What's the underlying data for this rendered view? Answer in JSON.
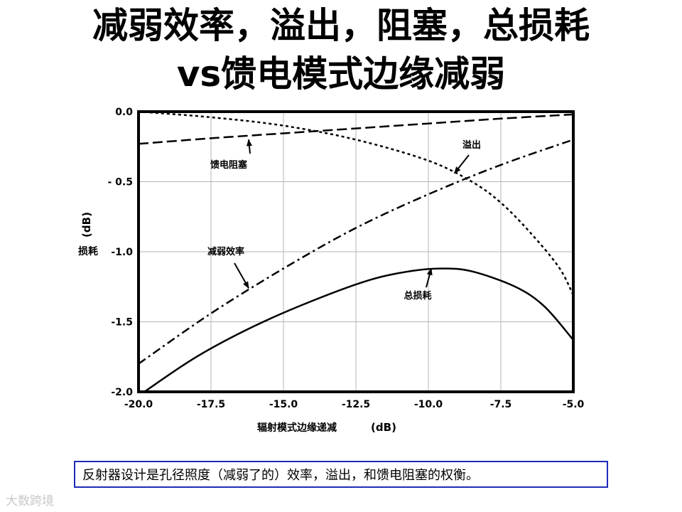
{
  "title_line1": "减弱效率，溢出，阻塞，总损耗",
  "title_line2": "vs馈电模式边缘减弱",
  "caption": "反射器设计是孔径照度（减弱了的）效率，溢出，和馈电阻塞的权衡。",
  "watermark": "大数跨境",
  "chart_data": {
    "type": "line",
    "xlabel": "辐射模式边缘递减",
    "xunit": "(dB)",
    "ylabel": "损耗",
    "yunit": "(dB)",
    "xlim": [
      -20.0,
      -5.0
    ],
    "ylim": [
      -2.0,
      0.0
    ],
    "x_ticks": [
      -20.0,
      -17.5,
      -15.0,
      -12.5,
      -10.0,
      -7.5,
      -5.0
    ],
    "x_tick_labels": [
      "-20.0",
      "-17.5",
      "-15.0",
      "-12.5",
      "-10.0",
      "-7.5",
      "-5.0"
    ],
    "y_ticks": [
      0.0,
      -0.5,
      -1.0,
      -1.5,
      -2.0
    ],
    "y_tick_labels": [
      "0.0",
      "- 0.5",
      "-1.0",
      "-1.5",
      "-2.0"
    ],
    "grid": true,
    "series": [
      {
        "name": "馈电阻塞",
        "style": "long-dash",
        "x": [
          -20.0,
          -17.5,
          -15.0,
          -12.5,
          -10.0,
          -7.5,
          -5.0
        ],
        "values": [
          -0.23,
          -0.19,
          -0.155,
          -0.12,
          -0.085,
          -0.05,
          -0.02
        ]
      },
      {
        "name": "溢出",
        "style": "dotted",
        "x": [
          -20.0,
          -17.5,
          -15.0,
          -12.5,
          -10.0,
          -8.5,
          -7.5,
          -6.5,
          -5.5,
          -5.0
        ],
        "values": [
          0.0,
          -0.04,
          -0.1,
          -0.2,
          -0.35,
          -0.5,
          -0.65,
          -0.86,
          -1.11,
          -1.31
        ]
      },
      {
        "name": "减弱效率",
        "style": "dash-dot",
        "x": [
          -20.0,
          -17.5,
          -15.0,
          -12.5,
          -10.0,
          -7.5,
          -5.0
        ],
        "values": [
          -1.8,
          -1.44,
          -1.12,
          -0.83,
          -0.59,
          -0.38,
          -0.2
        ]
      },
      {
        "name": "总损耗",
        "style": "solid",
        "x": [
          -19.8,
          -18.0,
          -16.0,
          -14.0,
          -12.0,
          -10.5,
          -9.5,
          -8.5,
          -7.0,
          -6.0,
          -5.0
        ],
        "values": [
          -2.0,
          -1.75,
          -1.53,
          -1.35,
          -1.2,
          -1.135,
          -1.12,
          -1.14,
          -1.25,
          -1.39,
          -1.63
        ]
      }
    ],
    "annotations": [
      {
        "text": "馈电阻塞",
        "arrow_to": [
          -16.2,
          -0.2
        ]
      },
      {
        "text": "溢出",
        "arrow_to": [
          -9.1,
          -0.44
        ]
      },
      {
        "text": "减弱效率",
        "arrow_to": [
          -16.2,
          -1.26
        ]
      },
      {
        "text": "总损耗",
        "arrow_to": [
          -9.9,
          -1.12
        ]
      }
    ]
  }
}
